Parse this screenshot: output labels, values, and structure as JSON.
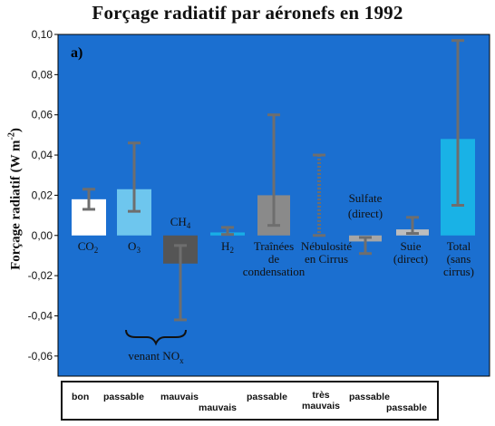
{
  "chart_data": {
    "type": "bar",
    "title": "Forçage radiatif par aéronefs en 1992",
    "panel_label": "a)",
    "ylabel": "Forçage radiatif (W m-2)",
    "ylabel_parts": {
      "main": "Forçage radiatif (W m",
      "sup": "-2",
      "close": ")"
    },
    "ylim": [
      -0.07,
      0.1
    ],
    "yticks": [
      0.1,
      0.08,
      0.06,
      0.04,
      0.02,
      0.0,
      -0.02,
      -0.04,
      -0.06
    ],
    "ytick_labels": [
      "0,10",
      "0,08",
      "0,06",
      "0,04",
      "0,02",
      "0,00",
      "-0,02",
      "-0,04",
      "-0,06"
    ],
    "grid": false,
    "plot_background": "#1b6fd0",
    "categories": [
      {
        "label": "CO2",
        "value": 0.018,
        "err_low": 0.013,
        "err_high": 0.023,
        "color": "#ffffff",
        "error_style": "solid"
      },
      {
        "label": "O3",
        "value": 0.023,
        "err_low": 0.012,
        "err_high": 0.046,
        "color": "#6ec6ee",
        "error_style": "solid"
      },
      {
        "label": "CH4",
        "value": -0.014,
        "err_low": -0.042,
        "err_high": -0.005,
        "color": "#555555",
        "error_style": "solid"
      },
      {
        "label": "H2O",
        "value": 0.0015,
        "err_low": 0.0005,
        "err_high": 0.004,
        "color": "#18aee6",
        "error_style": "solid"
      },
      {
        "label": "Traînées de condensation",
        "value": 0.02,
        "err_low": 0.005,
        "err_high": 0.06,
        "color": "#8a8a8a",
        "error_style": "solid"
      },
      {
        "label": "Nébulosité en Cirrus",
        "value": null,
        "err_low": 0.0,
        "err_high": 0.04,
        "color": "#555555",
        "error_style": "dotted"
      },
      {
        "label": "Sulfate (direct)",
        "value": -0.003,
        "err_low": -0.009,
        "err_high": -0.001,
        "color": "#a6a6a6",
        "error_style": "solid"
      },
      {
        "label": "Suie (direct)",
        "value": 0.003,
        "err_low": 0.001,
        "err_high": 0.009,
        "color": "#bdbdbd",
        "error_style": "solid"
      },
      {
        "label": "Total (sans cirrus)",
        "value": 0.048,
        "err_low": 0.015,
        "err_high": 0.097,
        "color": "#19b2e6",
        "error_style": "solid"
      }
    ],
    "annotations": {
      "nox_label": "venant NO",
      "nox_sub": "x"
    },
    "confidence_levels": [
      "bon",
      "passable",
      "mauvais",
      "mauvais",
      "passable",
      "très mauvais",
      "passable",
      "passable"
    ]
  },
  "colors": {
    "plot_background": "#1b6fd0",
    "error_bar": "#6e6e6e",
    "axis": "#000000"
  }
}
